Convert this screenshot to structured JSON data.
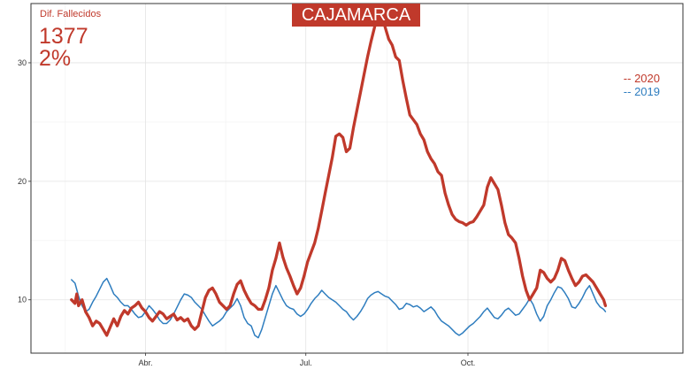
{
  "header": {
    "region": "CAJAMARCA"
  },
  "stats": {
    "label": "Dif. Fallecidos",
    "difference": "1377",
    "percent": "2%"
  },
  "colors": {
    "y2020": "#c0392b",
    "y2019": "#2e7dbf"
  },
  "legend": {
    "item_2020": "-- 2020",
    "item_2019": "-- 2019",
    "placement": "top-right"
  },
  "chart_data": {
    "type": "line",
    "title": "CAJAMARCA",
    "xlabel": "",
    "ylabel": "",
    "x_unit": "day of year",
    "xlim": [
      -5,
      365
    ],
    "ylim": [
      5.5,
      35
    ],
    "grid": true,
    "x_ticks": [
      {
        "label": "Abr.",
        "x": 60
      },
      {
        "label": "Jul.",
        "x": 151
      },
      {
        "label": "Oct.",
        "x": 243
      }
    ],
    "y_ticks": [
      {
        "label": "10",
        "y": 10
      },
      {
        "label": "20",
        "y": 20
      },
      {
        "label": "30",
        "y": 30
      }
    ],
    "series": [
      {
        "name": "2020",
        "points": [
          [
            18,
            10
          ],
          [
            20,
            9.7
          ],
          [
            21,
            10.5
          ],
          [
            22,
            9.5
          ],
          [
            24,
            10
          ],
          [
            26,
            9
          ],
          [
            28,
            8.5
          ],
          [
            30,
            7.8
          ],
          [
            32,
            8.2
          ],
          [
            34,
            8
          ],
          [
            36,
            7.5
          ],
          [
            38,
            7
          ],
          [
            40,
            7.7
          ],
          [
            42,
            8.4
          ],
          [
            44,
            7.8
          ],
          [
            46,
            8.6
          ],
          [
            48,
            9.1
          ],
          [
            50,
            8.8
          ],
          [
            52,
            9.3
          ],
          [
            54,
            9.5
          ],
          [
            56,
            9.8
          ],
          [
            58,
            9.3
          ],
          [
            60,
            9
          ],
          [
            62,
            8.5
          ],
          [
            64,
            8.2
          ],
          [
            66,
            8.6
          ],
          [
            68,
            9
          ],
          [
            70,
            8.8
          ],
          [
            72,
            8.4
          ],
          [
            74,
            8.6
          ],
          [
            76,
            8.8
          ],
          [
            78,
            8.3
          ],
          [
            80,
            8.5
          ],
          [
            82,
            8.2
          ],
          [
            84,
            8.4
          ],
          [
            86,
            7.8
          ],
          [
            88,
            7.5
          ],
          [
            90,
            7.8
          ],
          [
            92,
            9
          ],
          [
            94,
            10.2
          ],
          [
            96,
            10.8
          ],
          [
            98,
            11
          ],
          [
            100,
            10.5
          ],
          [
            102,
            9.8
          ],
          [
            104,
            9.5
          ],
          [
            106,
            9.2
          ],
          [
            108,
            9.5
          ],
          [
            110,
            10.5
          ],
          [
            112,
            11.3
          ],
          [
            114,
            11.6
          ],
          [
            116,
            10.8
          ],
          [
            118,
            10.2
          ],
          [
            120,
            9.7
          ],
          [
            122,
            9.5
          ],
          [
            124,
            9.2
          ],
          [
            126,
            9.2
          ],
          [
            128,
            10
          ],
          [
            130,
            11
          ],
          [
            132,
            12.5
          ],
          [
            134,
            13.5
          ],
          [
            136,
            14.8
          ],
          [
            138,
            13.6
          ],
          [
            140,
            12.7
          ],
          [
            142,
            12
          ],
          [
            144,
            11.2
          ],
          [
            146,
            10.5
          ],
          [
            148,
            11
          ],
          [
            150,
            12
          ],
          [
            152,
            13.2
          ],
          [
            154,
            14
          ],
          [
            156,
            14.8
          ],
          [
            158,
            16
          ],
          [
            160,
            17.5
          ],
          [
            162,
            19
          ],
          [
            164,
            20.5
          ],
          [
            166,
            22
          ],
          [
            168,
            23.8
          ],
          [
            170,
            24
          ],
          [
            172,
            23.7
          ],
          [
            174,
            22.5
          ],
          [
            176,
            22.8
          ],
          [
            178,
            24.5
          ],
          [
            180,
            26
          ],
          [
            182,
            27.5
          ],
          [
            184,
            29
          ],
          [
            186,
            30.5
          ],
          [
            188,
            31.8
          ],
          [
            190,
            33
          ],
          [
            192,
            34
          ],
          [
            194,
            34.2
          ],
          [
            196,
            33
          ],
          [
            198,
            32
          ],
          [
            200,
            31.5
          ],
          [
            202,
            30.5
          ],
          [
            204,
            30.2
          ],
          [
            206,
            28.5
          ],
          [
            208,
            27
          ],
          [
            210,
            25.6
          ],
          [
            212,
            25.2
          ],
          [
            214,
            24.8
          ],
          [
            216,
            24
          ],
          [
            218,
            23.5
          ],
          [
            220,
            22.5
          ],
          [
            222,
            21.9
          ],
          [
            224,
            21.5
          ],
          [
            226,
            20.8
          ],
          [
            228,
            20.5
          ],
          [
            230,
            19
          ],
          [
            232,
            18
          ],
          [
            234,
            17.2
          ],
          [
            236,
            16.8
          ],
          [
            238,
            16.6
          ],
          [
            240,
            16.5
          ],
          [
            242,
            16.3
          ],
          [
            244,
            16.5
          ],
          [
            246,
            16.6
          ],
          [
            248,
            17
          ],
          [
            250,
            17.5
          ],
          [
            252,
            18
          ],
          [
            254,
            19.5
          ],
          [
            256,
            20.3
          ],
          [
            258,
            19.8
          ],
          [
            260,
            19.3
          ],
          [
            262,
            18
          ],
          [
            264,
            16.5
          ],
          [
            266,
            15.5
          ],
          [
            268,
            15.2
          ],
          [
            270,
            14.8
          ],
          [
            272,
            13.5
          ],
          [
            274,
            12
          ],
          [
            276,
            10.8
          ],
          [
            278,
            10
          ],
          [
            280,
            10.5
          ],
          [
            282,
            11
          ],
          [
            284,
            12.5
          ],
          [
            286,
            12.3
          ],
          [
            288,
            11.8
          ],
          [
            290,
            11.5
          ],
          [
            292,
            11.8
          ],
          [
            294,
            12.5
          ],
          [
            296,
            13.5
          ],
          [
            298,
            13.3
          ],
          [
            300,
            12.5
          ],
          [
            302,
            11.8
          ],
          [
            304,
            11.2
          ],
          [
            306,
            11.5
          ],
          [
            308,
            12
          ],
          [
            310,
            12.1
          ],
          [
            312,
            11.8
          ],
          [
            314,
            11.5
          ],
          [
            316,
            11
          ],
          [
            318,
            10.5
          ],
          [
            320,
            10
          ],
          [
            321,
            9.5
          ]
        ]
      },
      {
        "name": "2019",
        "points": [
          [
            18,
            11.7
          ],
          [
            20,
            11.4
          ],
          [
            22,
            10.3
          ],
          [
            24,
            9.5
          ],
          [
            26,
            9
          ],
          [
            28,
            9.2
          ],
          [
            30,
            9.8
          ],
          [
            32,
            10.3
          ],
          [
            34,
            10.9
          ],
          [
            36,
            11.5
          ],
          [
            38,
            11.8
          ],
          [
            40,
            11.2
          ],
          [
            42,
            10.5
          ],
          [
            44,
            10.2
          ],
          [
            46,
            9.8
          ],
          [
            48,
            9.5
          ],
          [
            50,
            9.5
          ],
          [
            52,
            9.2
          ],
          [
            54,
            8.8
          ],
          [
            56,
            8.5
          ],
          [
            58,
            8.6
          ],
          [
            60,
            9
          ],
          [
            62,
            9.5
          ],
          [
            64,
            9.2
          ],
          [
            66,
            8.8
          ],
          [
            68,
            8.3
          ],
          [
            70,
            8
          ],
          [
            72,
            8
          ],
          [
            74,
            8.3
          ],
          [
            76,
            8.8
          ],
          [
            78,
            9.4
          ],
          [
            80,
            10
          ],
          [
            82,
            10.5
          ],
          [
            84,
            10.4
          ],
          [
            86,
            10.2
          ],
          [
            88,
            9.8
          ],
          [
            90,
            9.5
          ],
          [
            92,
            9.2
          ],
          [
            94,
            8.7
          ],
          [
            96,
            8.2
          ],
          [
            98,
            7.8
          ],
          [
            100,
            8
          ],
          [
            102,
            8.2
          ],
          [
            104,
            8.5
          ],
          [
            106,
            9
          ],
          [
            108,
            9.3
          ],
          [
            110,
            9.6
          ],
          [
            112,
            10.1
          ],
          [
            114,
            9.5
          ],
          [
            116,
            8.5
          ],
          [
            118,
            8
          ],
          [
            120,
            7.8
          ],
          [
            122,
            7
          ],
          [
            124,
            6.8
          ],
          [
            126,
            7.5
          ],
          [
            128,
            8.5
          ],
          [
            130,
            9.5
          ],
          [
            132,
            10.5
          ],
          [
            134,
            11.2
          ],
          [
            136,
            10.6
          ],
          [
            138,
            10
          ],
          [
            140,
            9.5
          ],
          [
            142,
            9.3
          ],
          [
            144,
            9.2
          ],
          [
            146,
            8.8
          ],
          [
            148,
            8.6
          ],
          [
            150,
            8.8
          ],
          [
            152,
            9.2
          ],
          [
            154,
            9.7
          ],
          [
            156,
            10.1
          ],
          [
            158,
            10.4
          ],
          [
            160,
            10.8
          ],
          [
            162,
            10.5
          ],
          [
            164,
            10.2
          ],
          [
            166,
            10
          ],
          [
            168,
            9.8
          ],
          [
            170,
            9.5
          ],
          [
            172,
            9.2
          ],
          [
            174,
            9
          ],
          [
            176,
            8.6
          ],
          [
            178,
            8.3
          ],
          [
            180,
            8.6
          ],
          [
            182,
            9
          ],
          [
            184,
            9.5
          ],
          [
            186,
            10.1
          ],
          [
            188,
            10.4
          ],
          [
            190,
            10.6
          ],
          [
            192,
            10.7
          ],
          [
            194,
            10.5
          ],
          [
            196,
            10.3
          ],
          [
            198,
            10.2
          ],
          [
            200,
            9.9
          ],
          [
            202,
            9.6
          ],
          [
            204,
            9.2
          ],
          [
            206,
            9.3
          ],
          [
            208,
            9.7
          ],
          [
            210,
            9.6
          ],
          [
            212,
            9.4
          ],
          [
            214,
            9.5
          ],
          [
            216,
            9.3
          ],
          [
            218,
            9
          ],
          [
            220,
            9.2
          ],
          [
            222,
            9.4
          ],
          [
            224,
            9.1
          ],
          [
            226,
            8.6
          ],
          [
            228,
            8.2
          ],
          [
            230,
            8
          ],
          [
            232,
            7.8
          ],
          [
            234,
            7.5
          ],
          [
            236,
            7.2
          ],
          [
            238,
            7
          ],
          [
            240,
            7.2
          ],
          [
            242,
            7.5
          ],
          [
            244,
            7.8
          ],
          [
            246,
            8
          ],
          [
            248,
            8.3
          ],
          [
            250,
            8.6
          ],
          [
            252,
            9
          ],
          [
            254,
            9.3
          ],
          [
            256,
            8.9
          ],
          [
            258,
            8.5
          ],
          [
            260,
            8.4
          ],
          [
            262,
            8.7
          ],
          [
            264,
            9.1
          ],
          [
            266,
            9.3
          ],
          [
            268,
            9
          ],
          [
            270,
            8.7
          ],
          [
            272,
            8.8
          ],
          [
            274,
            9.2
          ],
          [
            276,
            9.6
          ],
          [
            278,
            10.1
          ],
          [
            280,
            9.6
          ],
          [
            282,
            8.8
          ],
          [
            284,
            8.2
          ],
          [
            286,
            8.6
          ],
          [
            288,
            9.5
          ],
          [
            290,
            10
          ],
          [
            292,
            10.6
          ],
          [
            294,
            11.1
          ],
          [
            296,
            11
          ],
          [
            298,
            10.6
          ],
          [
            300,
            10.1
          ],
          [
            302,
            9.4
          ],
          [
            304,
            9.3
          ],
          [
            306,
            9.7
          ],
          [
            308,
            10.2
          ],
          [
            310,
            10.8
          ],
          [
            312,
            11.2
          ],
          [
            314,
            10.5
          ],
          [
            316,
            9.8
          ],
          [
            318,
            9.4
          ],
          [
            320,
            9.2
          ],
          [
            321,
            9
          ]
        ]
      }
    ]
  }
}
